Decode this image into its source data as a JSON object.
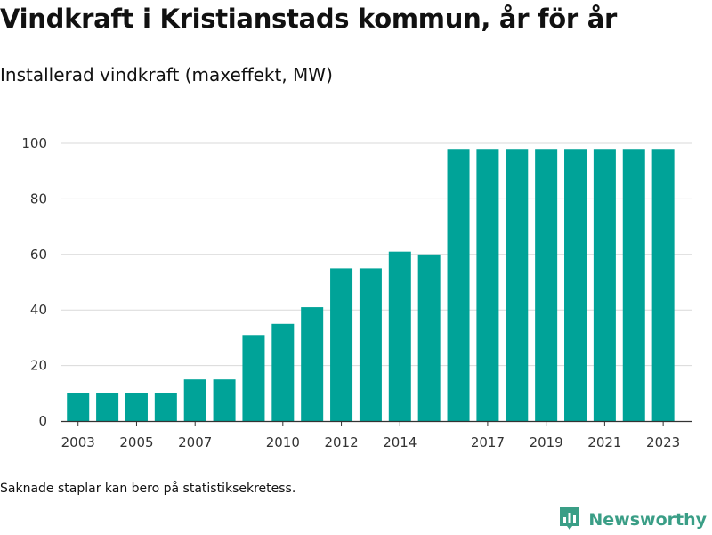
{
  "title": "Vindkraft i Kristianstads kommun, år för år",
  "subtitle": "Installerad vindkraft (maxeffekt, MW)",
  "note": "Saknade staplar kan bero på statistiksekretess.",
  "brand": {
    "name": "Newsworthy",
    "logo_icon": "bar-chart-logo-icon",
    "color": "#3a9e86"
  },
  "colors": {
    "bar": "#00a398",
    "grid": "#d9d9d9",
    "axis": "#333333"
  },
  "chart_data": {
    "type": "bar",
    "title": "Vindkraft i Kristianstads kommun, år för år",
    "subtitle": "Installerad vindkraft (maxeffekt, MW)",
    "xlabel": "",
    "ylabel": "",
    "categories": [
      2003,
      2004,
      2005,
      2006,
      2007,
      2008,
      2009,
      2010,
      2011,
      2012,
      2013,
      2014,
      2015,
      2016,
      2017,
      2018,
      2019,
      2020,
      2021,
      2022,
      2023
    ],
    "values": [
      10,
      10,
      10,
      10,
      15,
      15,
      31,
      35,
      41,
      55,
      55,
      61,
      60,
      98,
      98,
      98,
      98,
      98,
      98,
      98,
      98
    ],
    "ylim": [
      0,
      100
    ],
    "yticks": [
      0,
      20,
      40,
      60,
      80,
      100
    ],
    "xticks": [
      2003,
      2005,
      2007,
      2010,
      2012,
      2014,
      2017,
      2019,
      2021,
      2023
    ],
    "grid": true,
    "legend": "none"
  }
}
